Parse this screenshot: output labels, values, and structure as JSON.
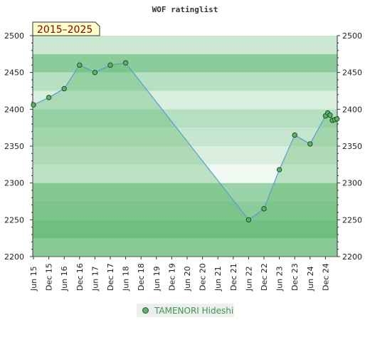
{
  "chart_data": {
    "type": "area",
    "title": "WOF ratinglist",
    "period_badge": "2015–2025",
    "ylim": [
      2200,
      2500
    ],
    "yticks": [
      2200,
      2250,
      2300,
      2350,
      2400,
      2450,
      2500
    ],
    "x_categories": [
      "Jun 15",
      "Dec 15",
      "Jun 16",
      "Dec 16",
      "Jun 17",
      "Dec 17",
      "Jun 18",
      "Dec 18",
      "Jun 19",
      "Dec 19",
      "Jun 20",
      "Dec 20",
      "Jun 21",
      "Dec 21",
      "Jun 22",
      "Dec 22",
      "Jun 23",
      "Dec 23",
      "Jun 24",
      "Dec 24"
    ],
    "series": [
      {
        "name": "TAMENORI Hideshi",
        "color": "#5cb46b",
        "line_color": "#5b9bd5",
        "points": [
          {
            "x": 0.0,
            "y": 2406
          },
          {
            "x": 1.0,
            "y": 2416
          },
          {
            "x": 2.0,
            "y": 2428
          },
          {
            "x": 3.0,
            "y": 2460
          },
          {
            "x": 4.0,
            "y": 2450
          },
          {
            "x": 5.0,
            "y": 2460
          },
          {
            "x": 6.0,
            "y": 2463
          },
          {
            "x": 14.0,
            "y": 2250
          },
          {
            "x": 15.0,
            "y": 2265
          },
          {
            "x": 16.0,
            "y": 2318
          },
          {
            "x": 17.0,
            "y": 2365
          },
          {
            "x": 18.0,
            "y": 2353
          },
          {
            "x": 19.0,
            "y": 2391
          },
          {
            "x": 19.15,
            "y": 2395
          },
          {
            "x": 19.3,
            "y": 2392
          },
          {
            "x": 19.45,
            "y": 2385
          },
          {
            "x": 19.6,
            "y": 2386
          },
          {
            "x": 19.75,
            "y": 2387
          }
        ]
      }
    ],
    "band_colors": [
      "#9fd3ab",
      "#7cc48d",
      "#8ccc9b",
      "#9bd3a8",
      "#f0f8f2",
      "#daeedf",
      "#c6e6cf",
      "#b4dfc0",
      "#d8eedf",
      "#b6e0c2",
      "#8ccc9b",
      "#cbe8d3"
    ],
    "legend_position": "bottom-center"
  }
}
